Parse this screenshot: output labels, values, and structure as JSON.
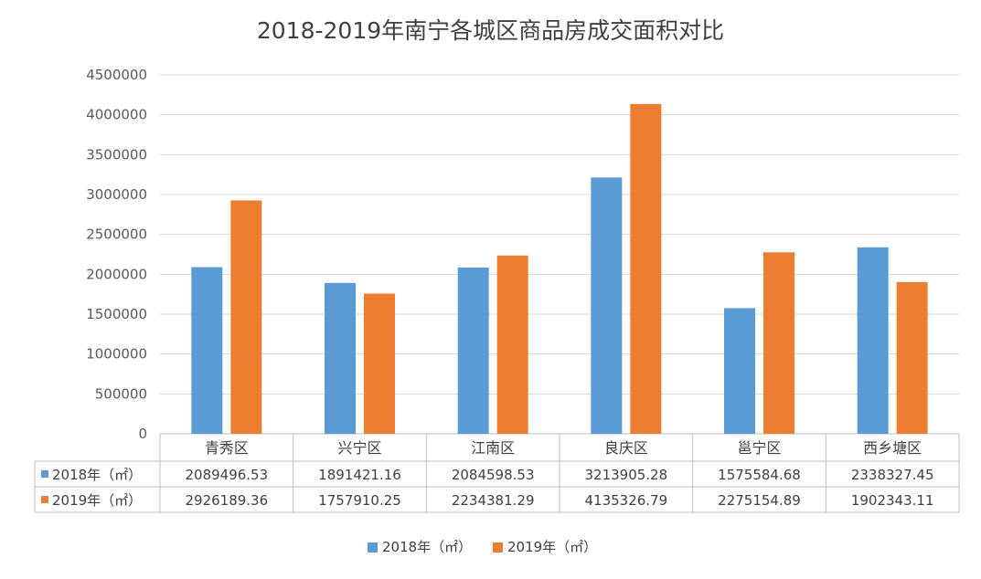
{
  "chart_data": {
    "type": "bar",
    "title": "2018-2019年南宁各城区商品房成交面积对比",
    "categories": [
      "青秀区",
      "兴宁区",
      "江南区",
      "良庆区",
      "邕宁区",
      "西乡塘区"
    ],
    "series": [
      {
        "name": "2018年（㎡）",
        "color": "#5b9bd5",
        "values": [
          2089496.53,
          1891421.16,
          2084598.53,
          3213905.28,
          1575584.68,
          2338327.45
        ],
        "labels": [
          "2089496.53",
          "1891421.16",
          "2084598.53",
          "3213905.28",
          "1575584.68",
          "2338327.45"
        ]
      },
      {
        "name": "2019年（㎡）",
        "color": "#ed7d31",
        "values": [
          2926189.36,
          1757910.25,
          2234381.29,
          4135326.79,
          2275154.89,
          1902343.11
        ],
        "labels": [
          "2926189.36",
          "1757910.25",
          "2234381.29",
          "4135326.79",
          "2275154.89",
          "1902343.11"
        ]
      }
    ],
    "yticks": [
      "0",
      "500000",
      "1000000",
      "1500000",
      "2000000",
      "2500000",
      "3000000",
      "3500000",
      "4000000",
      "4500000"
    ],
    "ylim": [
      0,
      4500000
    ],
    "grid": true,
    "legend": "bottom",
    "data_table": true
  }
}
